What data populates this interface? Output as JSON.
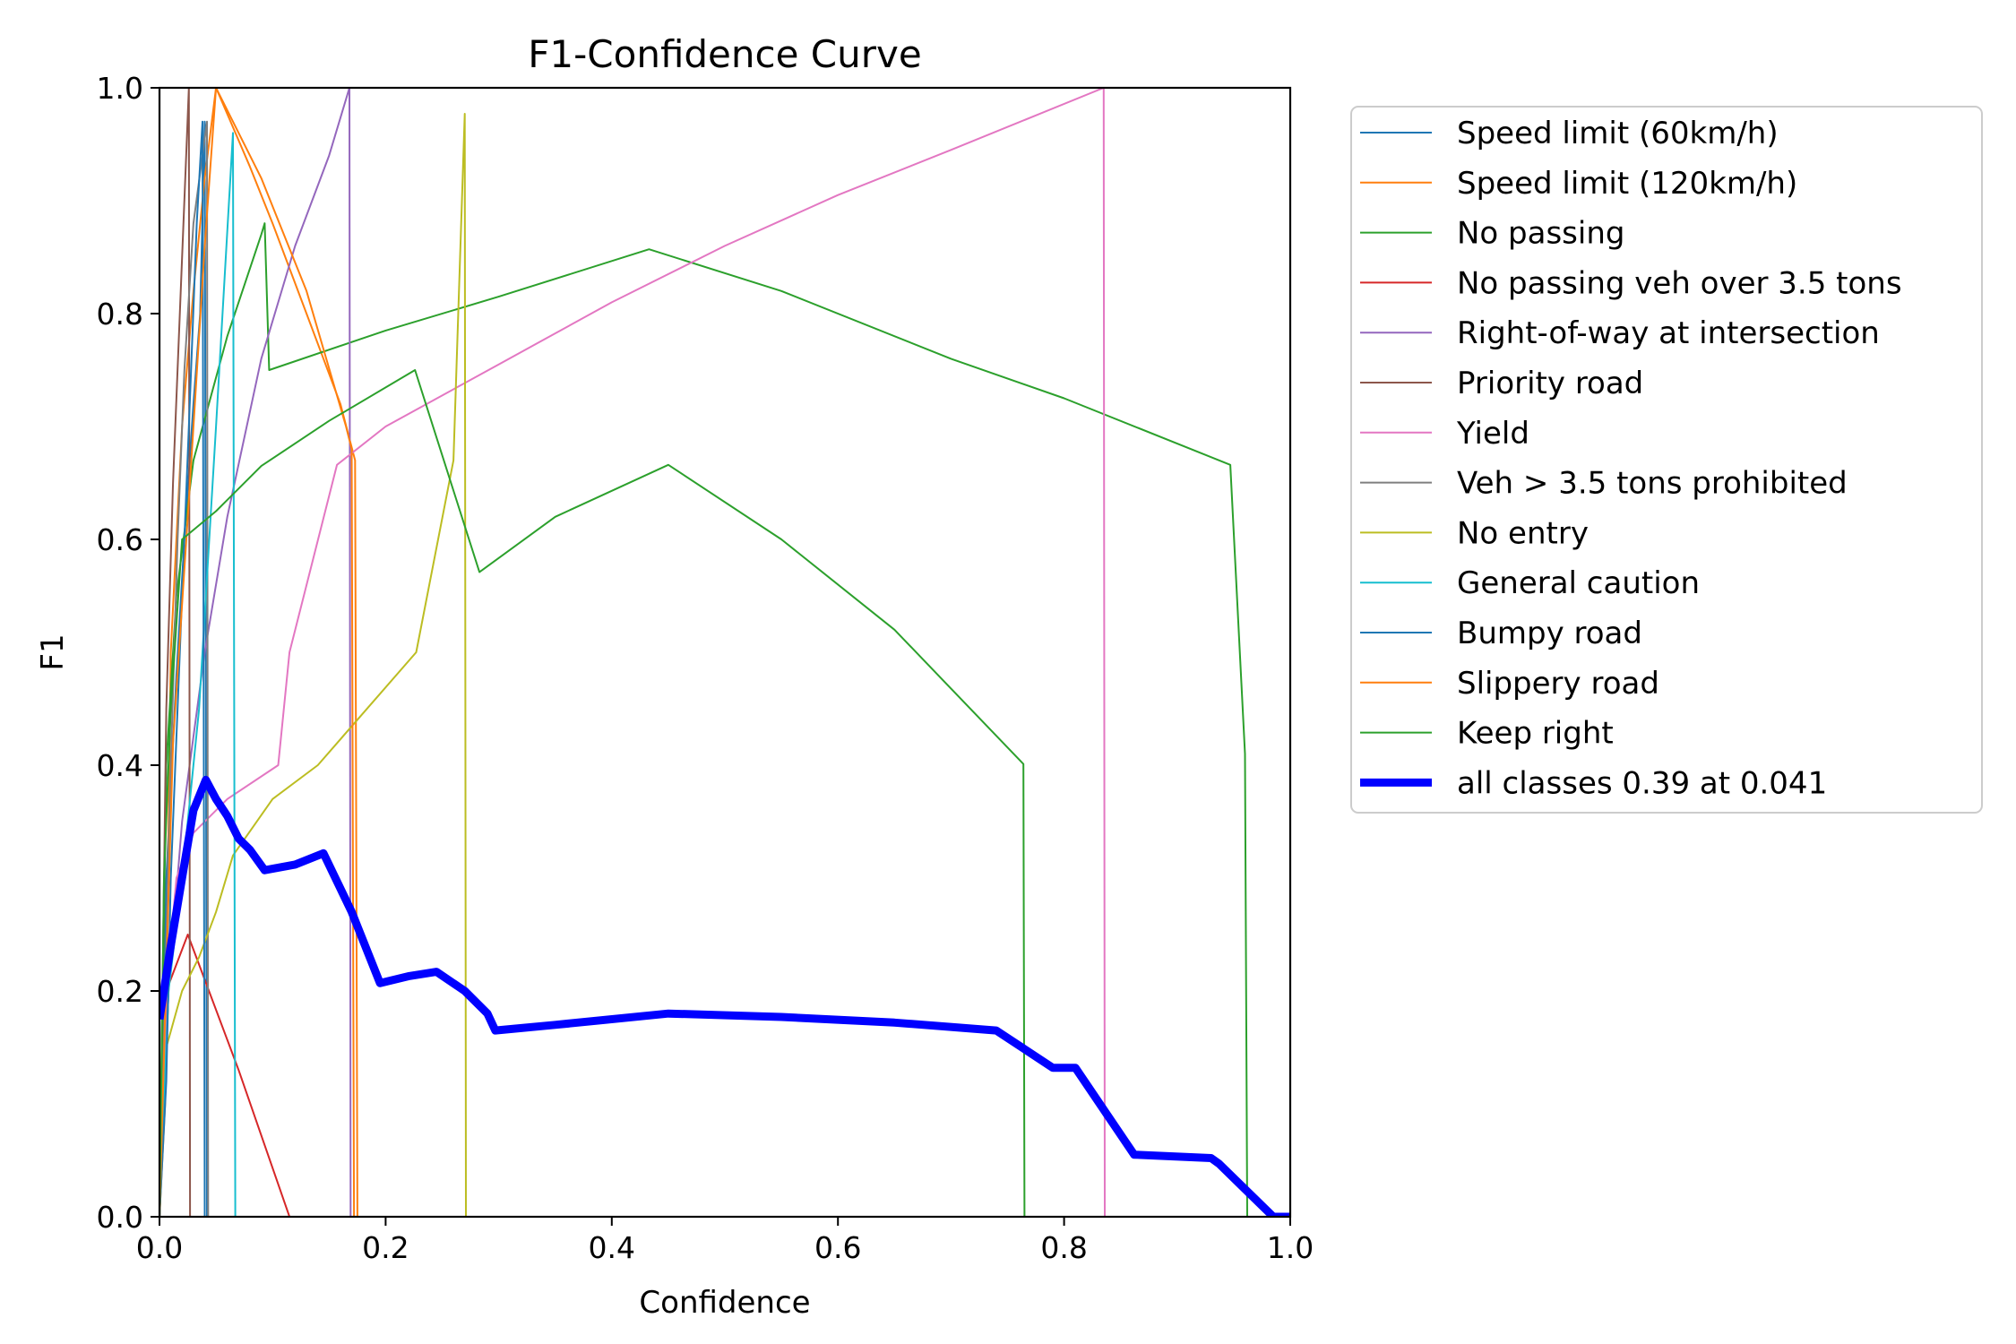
{
  "chart_data": {
    "type": "line",
    "title": "F1-Confidence Curve",
    "xlabel": "Confidence",
    "ylabel": "F1",
    "xlim": [
      0,
      1
    ],
    "ylim": [
      0,
      1
    ],
    "xticks": [
      "0.0",
      "0.2",
      "0.4",
      "0.6",
      "0.8",
      "1.0"
    ],
    "yticks": [
      "0.0",
      "0.2",
      "0.4",
      "0.6",
      "0.8",
      "1.0"
    ],
    "grid": false,
    "legend_position": "outside-right",
    "series": [
      {
        "name": "Speed limit (60km/h)",
        "color": "#1f77b4",
        "width": 2,
        "points": [
          [
            0,
            0
          ],
          [
            0.006,
            0.3
          ],
          [
            0.015,
            0.48
          ],
          [
            0.022,
            0.6
          ],
          [
            0.03,
            0.72
          ],
          [
            0.036,
            0.8
          ],
          [
            0.04,
            0.97
          ],
          [
            0.042,
            0
          ],
          [
            1,
            0
          ]
        ]
      },
      {
        "name": "Speed limit (120km/h)",
        "color": "#ff7f0e",
        "width": 2,
        "points": [
          [
            0,
            0
          ],
          [
            0.005,
            0.1
          ],
          [
            0.01,
            0.5
          ],
          [
            0.02,
            0.7
          ],
          [
            0.03,
            0.82
          ],
          [
            0.04,
            0.92
          ],
          [
            0.05,
            1.0
          ],
          [
            0.08,
            0.93
          ],
          [
            0.1,
            0.88
          ],
          [
            0.13,
            0.8
          ],
          [
            0.16,
            0.72
          ],
          [
            0.173,
            0.67
          ],
          [
            0.175,
            0
          ],
          [
            1,
            0
          ]
        ]
      },
      {
        "name": "No passing",
        "color": "#2ca02c",
        "width": 2,
        "points": [
          [
            0,
            0
          ],
          [
            0.006,
            0.4
          ],
          [
            0.015,
            0.55
          ],
          [
            0.03,
            0.67
          ],
          [
            0.06,
            0.78
          ],
          [
            0.09,
            0.87
          ],
          [
            0.093,
            0.88
          ],
          [
            0.097,
            0.75
          ],
          [
            0.2,
            0.785
          ],
          [
            0.3,
            0.815
          ],
          [
            0.433,
            0.857
          ],
          [
            0.55,
            0.82
          ],
          [
            0.7,
            0.76
          ],
          [
            0.8,
            0.725
          ],
          [
            0.947,
            0.666
          ],
          [
            0.96,
            0.41
          ],
          [
            0.962,
            0
          ],
          [
            1,
            0
          ]
        ]
      },
      {
        "name": "No passing veh over 3.5 tons",
        "color": "#d62728",
        "width": 2,
        "points": [
          [
            0,
            0
          ],
          [
            0.006,
            0.2
          ],
          [
            0.025,
            0.25
          ],
          [
            0.07,
            0.13
          ],
          [
            0.115,
            0
          ],
          [
            1,
            0
          ]
        ]
      },
      {
        "name": "Right-of-way at intersection",
        "color": "#9467bd",
        "width": 2,
        "points": [
          [
            0,
            0
          ],
          [
            0.008,
            0.2
          ],
          [
            0.02,
            0.35
          ],
          [
            0.04,
            0.5
          ],
          [
            0.06,
            0.62
          ],
          [
            0.09,
            0.76
          ],
          [
            0.12,
            0.86
          ],
          [
            0.15,
            0.94
          ],
          [
            0.168,
            1.0
          ],
          [
            0.169,
            0
          ],
          [
            1,
            0
          ]
        ]
      },
      {
        "name": "Priority road",
        "color": "#8c564b",
        "width": 2,
        "points": [
          [
            0,
            0
          ],
          [
            0.006,
            0.45
          ],
          [
            0.012,
            0.65
          ],
          [
            0.018,
            0.8
          ],
          [
            0.024,
            0.95
          ],
          [
            0.026,
            1.0
          ],
          [
            0.027,
            0
          ],
          [
            1,
            0
          ]
        ]
      },
      {
        "name": "Yield",
        "color": "#e377c2",
        "width": 2,
        "points": [
          [
            0,
            0
          ],
          [
            0.006,
            0.2
          ],
          [
            0.015,
            0.3
          ],
          [
            0.03,
            0.34
          ],
          [
            0.06,
            0.37
          ],
          [
            0.105,
            0.4
          ],
          [
            0.115,
            0.5
          ],
          [
            0.157,
            0.666
          ],
          [
            0.2,
            0.7
          ],
          [
            0.3,
            0.755
          ],
          [
            0.4,
            0.81
          ],
          [
            0.5,
            0.86
          ],
          [
            0.6,
            0.905
          ],
          [
            0.7,
            0.945
          ],
          [
            0.835,
            1.0
          ],
          [
            0.836,
            0
          ],
          [
            1,
            0
          ]
        ]
      },
      {
        "name": "Veh > 3.5 tons prohibited",
        "color": "#7f7f7f",
        "width": 2,
        "points": [
          [
            0,
            0
          ],
          [
            0.005,
            0.2
          ],
          [
            0.01,
            0.4
          ],
          [
            0.016,
            0.6
          ],
          [
            0.022,
            0.75
          ],
          [
            0.03,
            0.88
          ],
          [
            0.042,
            0.97
          ],
          [
            0.043,
            0
          ],
          [
            1,
            0
          ]
        ]
      },
      {
        "name": "No entry",
        "color": "#bcbd22",
        "width": 2,
        "points": [
          [
            0,
            0
          ],
          [
            0.006,
            0.15
          ],
          [
            0.02,
            0.2
          ],
          [
            0.035,
            0.23
          ],
          [
            0.05,
            0.27
          ],
          [
            0.065,
            0.32
          ],
          [
            0.1,
            0.37
          ],
          [
            0.14,
            0.4
          ],
          [
            0.227,
            0.5
          ],
          [
            0.26,
            0.67
          ],
          [
            0.27,
            0.977
          ],
          [
            0.271,
            0
          ],
          [
            1,
            0
          ]
        ]
      },
      {
        "name": "General caution",
        "color": "#17becf",
        "width": 2,
        "points": [
          [
            0,
            0
          ],
          [
            0.008,
            0.2
          ],
          [
            0.02,
            0.3
          ],
          [
            0.035,
            0.45
          ],
          [
            0.05,
            0.7
          ],
          [
            0.065,
            0.96
          ],
          [
            0.067,
            0
          ],
          [
            1,
            0
          ]
        ]
      },
      {
        "name": "Bumpy road",
        "color": "#1f77b4",
        "width": 2,
        "points": [
          [
            0,
            0
          ],
          [
            0.006,
            0.12
          ],
          [
            0.01,
            0.3
          ],
          [
            0.018,
            0.5
          ],
          [
            0.026,
            0.7
          ],
          [
            0.033,
            0.88
          ],
          [
            0.038,
            0.97
          ],
          [
            0.04,
            0
          ],
          [
            1,
            0
          ]
        ]
      },
      {
        "name": "Slippery road",
        "color": "#ff7f0e",
        "width": 2,
        "points": [
          [
            0,
            0
          ],
          [
            0.005,
            0.18
          ],
          [
            0.012,
            0.42
          ],
          [
            0.025,
            0.62
          ],
          [
            0.04,
            0.86
          ],
          [
            0.05,
            1.0
          ],
          [
            0.09,
            0.92
          ],
          [
            0.13,
            0.82
          ],
          [
            0.165,
            0.7
          ],
          [
            0.17,
            0.68
          ],
          [
            0.172,
            0
          ],
          [
            1,
            0
          ]
        ]
      },
      {
        "name": "Keep right",
        "color": "#2ca02c",
        "width": 2,
        "points": [
          [
            0,
            0
          ],
          [
            0.004,
            0.3
          ],
          [
            0.01,
            0.45
          ],
          [
            0.02,
            0.6
          ],
          [
            0.05,
            0.625
          ],
          [
            0.09,
            0.665
          ],
          [
            0.15,
            0.705
          ],
          [
            0.226,
            0.75
          ],
          [
            0.283,
            0.571
          ],
          [
            0.35,
            0.62
          ],
          [
            0.45,
            0.666
          ],
          [
            0.55,
            0.6
          ],
          [
            0.65,
            0.52
          ],
          [
            0.764,
            0.401
          ],
          [
            0.765,
            0
          ],
          [
            1,
            0
          ]
        ]
      },
      {
        "name": "all classes 0.39 at 0.041",
        "color": "#0000ff",
        "width": 9,
        "points": [
          [
            0,
            0.175
          ],
          [
            0.01,
            0.24
          ],
          [
            0.02,
            0.3
          ],
          [
            0.03,
            0.36
          ],
          [
            0.041,
            0.387
          ],
          [
            0.05,
            0.37
          ],
          [
            0.06,
            0.355
          ],
          [
            0.07,
            0.335
          ],
          [
            0.08,
            0.325
          ],
          [
            0.093,
            0.307
          ],
          [
            0.12,
            0.312
          ],
          [
            0.145,
            0.322
          ],
          [
            0.17,
            0.27
          ],
          [
            0.195,
            0.207
          ],
          [
            0.22,
            0.213
          ],
          [
            0.245,
            0.217
          ],
          [
            0.27,
            0.2
          ],
          [
            0.29,
            0.18
          ],
          [
            0.297,
            0.165
          ],
          [
            0.35,
            0.17
          ],
          [
            0.45,
            0.18
          ],
          [
            0.55,
            0.177
          ],
          [
            0.65,
            0.172
          ],
          [
            0.74,
            0.165
          ],
          [
            0.79,
            0.132
          ],
          [
            0.81,
            0.132
          ],
          [
            0.862,
            0.055
          ],
          [
            0.93,
            0.052
          ],
          [
            0.937,
            0.047
          ],
          [
            0.985,
            0.0
          ],
          [
            1.0,
            0.0
          ]
        ]
      }
    ]
  }
}
